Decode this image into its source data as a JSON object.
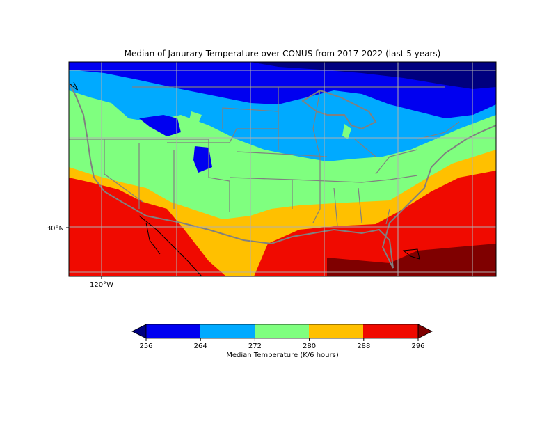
{
  "title": "Median of Janurary Temperature over CONUS from 2017-2022 (last 5 years)",
  "map": {
    "region": "CONUS",
    "lat_label": "30°N",
    "lon_label": "120°W",
    "gridlines": true
  },
  "colorbar": {
    "label": "Median Temperature (K/6 hours)",
    "ticks": [
      "256",
      "264",
      "272",
      "280",
      "288",
      "296"
    ],
    "levels": [
      256,
      264,
      272,
      280,
      288,
      296
    ],
    "extend": "both",
    "colors": {
      "under": "#00007f",
      "256-264": "#0000f0",
      "264-272": "#00aaff",
      "272-280": "#7fff7f",
      "280-288": "#ffc000",
      "288-296": "#f00a00",
      "over": "#7f0000"
    }
  }
}
